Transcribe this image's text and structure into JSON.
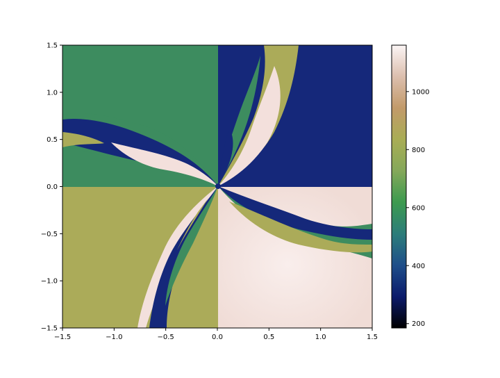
{
  "chart_data": {
    "type": "heatmap",
    "title": "",
    "xlabel": "",
    "ylabel": "",
    "xlim": [
      -1.5,
      1.5
    ],
    "ylim": [
      -1.5,
      1.5
    ],
    "x_ticks": [
      "−1.5",
      "−1.0",
      "−0.5",
      "0.0",
      "0.5",
      "1.0",
      "1.5"
    ],
    "y_ticks": [
      "1.5",
      "1.0",
      "0.5",
      "0.0",
      "−0.5",
      "−1.0",
      "−1.5"
    ],
    "grid": false,
    "colorbar": {
      "ticks": [
        "200",
        "400",
        "600",
        "800",
        "1000"
      ],
      "range": [
        185,
        1160
      ],
      "colors": [
        "#000000",
        "#0b1a6b",
        "#1f4f8a",
        "#2c7d7a",
        "#3c9a4f",
        "#85a85a",
        "#a9ad55",
        "#c29a6a",
        "#dcbfae",
        "#fbf5f5"
      ]
    },
    "regions": [
      {
        "name": "top-left",
        "color": "#3d8c5f",
        "value": 640
      },
      {
        "name": "top-right",
        "color": "#15287a",
        "value": 280
      },
      {
        "name": "bottom-left",
        "color": "#abab59",
        "value": 860
      },
      {
        "name": "bottom-right",
        "color": "#f3e0dc",
        "value": 1130
      }
    ]
  }
}
